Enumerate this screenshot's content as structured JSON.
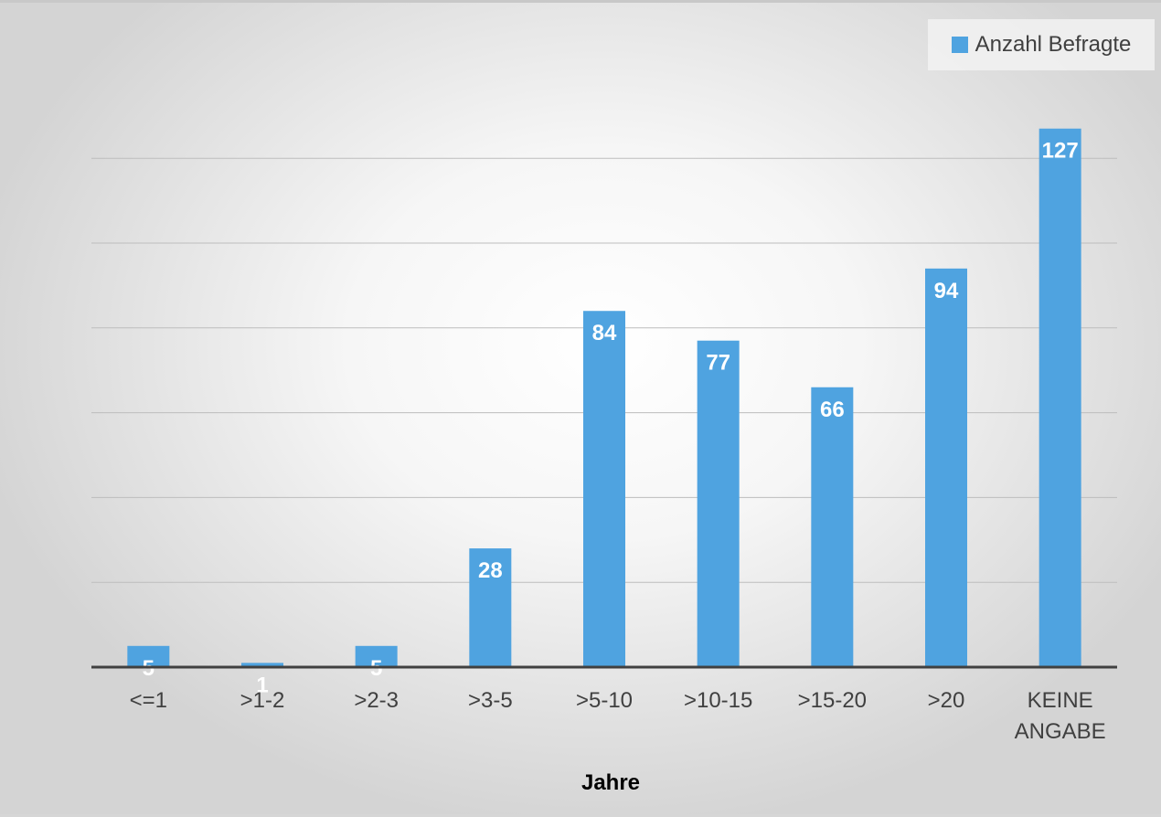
{
  "chart_data": {
    "type": "bar",
    "categories": [
      "<=1",
      ">1-2",
      ">2-3",
      ">3-5",
      ">5-10",
      ">10-15",
      ">15-20",
      ">20",
      [
        "KEINE",
        "ANGABE"
      ]
    ],
    "series": [
      {
        "name": "Anzahl Befragte",
        "values": [
          5,
          1,
          5,
          28,
          84,
          77,
          66,
          94,
          127
        ],
        "color": "#4fa3e0"
      }
    ],
    "xlabel": "Jahre",
    "ylim": [
      0,
      140
    ],
    "grid": true,
    "gridline_step": 20,
    "legend_position": "top-right",
    "data_label_color": "#ffffff"
  }
}
